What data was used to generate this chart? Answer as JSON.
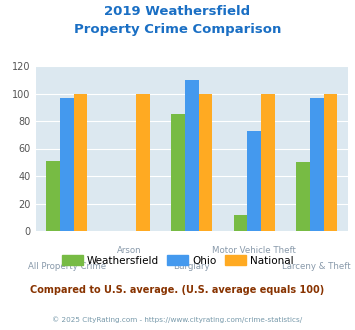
{
  "title_line1": "2019 Weathersfield",
  "title_line2": "Property Crime Comparison",
  "categories": [
    "All Property Crime",
    "Arson",
    "Burglary",
    "Motor Vehicle Theft",
    "Larceny & Theft"
  ],
  "stagger": [
    1,
    0,
    1,
    0,
    1
  ],
  "series": {
    "Weathersfield": [
      51,
      0,
      85,
      12,
      50
    ],
    "Ohio": [
      97,
      0,
      110,
      73,
      97
    ],
    "National": [
      100,
      100,
      100,
      100,
      100
    ]
  },
  "colors": {
    "Weathersfield": "#77bb44",
    "Ohio": "#4499ee",
    "National": "#ffaa22"
  },
  "ylim": [
    0,
    120
  ],
  "yticks": [
    0,
    20,
    40,
    60,
    80,
    100,
    120
  ],
  "bg_color": "#dce8f0",
  "note": "Compared to U.S. average. (U.S. average equals 100)",
  "footer": "© 2025 CityRating.com - https://www.cityrating.com/crime-statistics/",
  "title_color": "#1a6fc4",
  "note_color": "#883300",
  "footer_color": "#7799aa",
  "xlabel_color": "#8899aa",
  "bar_width": 0.22
}
